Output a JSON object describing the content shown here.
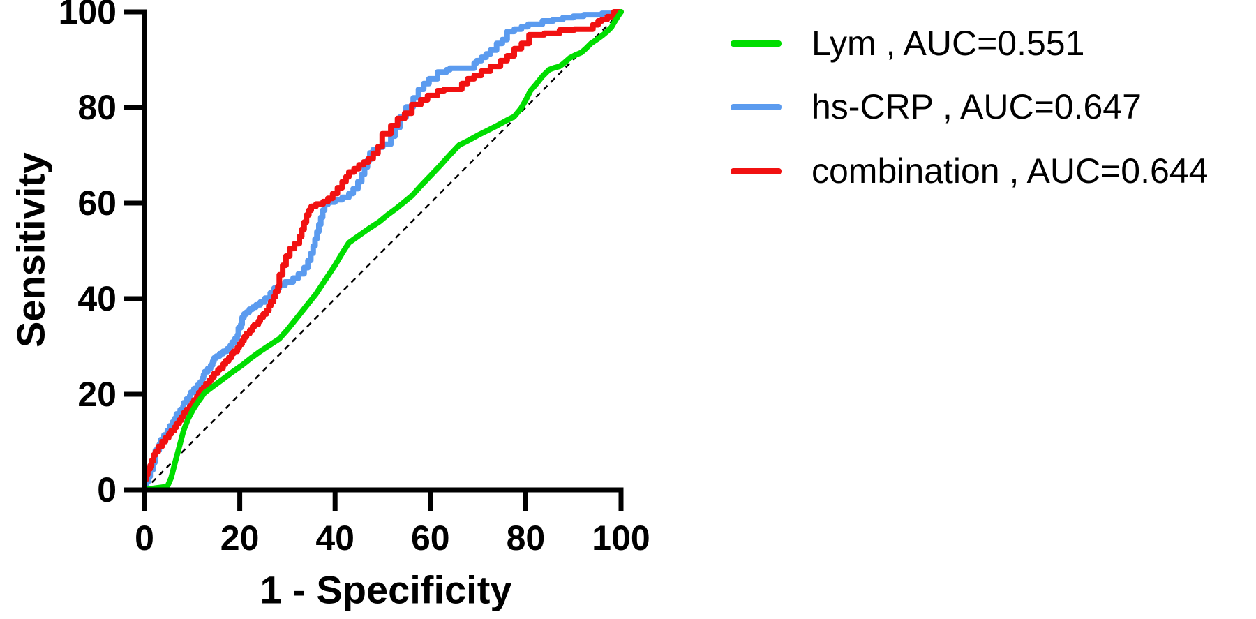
{
  "figure": {
    "description": "ROC curve comparison plot",
    "background_color": "#ffffff",
    "axis_color": "#000000"
  },
  "chart_data": {
    "type": "line",
    "subtype": "roc",
    "title": "",
    "xlabel": "1 - Specificity",
    "ylabel": "Sensitivity",
    "xlim": [
      0,
      100
    ],
    "ylim": [
      0,
      100
    ],
    "xticks": [
      "0",
      "20",
      "40",
      "60",
      "80",
      "100"
    ],
    "yticks": [
      "0",
      "20",
      "40",
      "60",
      "80",
      "100"
    ],
    "grid": false,
    "legend_position": "outside-right-top",
    "reference_line": {
      "name": "chance-diagonal",
      "style": "dashed",
      "color": "#000000",
      "points": [
        [
          0,
          0
        ],
        [
          100,
          100
        ]
      ]
    },
    "series": [
      {
        "name": "Lym",
        "legend_label": "Lym , AUC=0.551",
        "auc": "0.551",
        "color": "#00dd00",
        "stepped": false,
        "points": [
          [
            0,
            0
          ],
          [
            1,
            0.2
          ],
          [
            4.8,
            0.7
          ],
          [
            5.6,
            2.5
          ],
          [
            6.5,
            6
          ],
          [
            7.3,
            9
          ],
          [
            8.2,
            12.4
          ],
          [
            9.2,
            14.9
          ],
          [
            10.2,
            16.8
          ],
          [
            11.1,
            18.2
          ],
          [
            11.9,
            19.3
          ],
          [
            12.6,
            20.3
          ],
          [
            14.6,
            21.8
          ],
          [
            16.5,
            23.2
          ],
          [
            18.5,
            24.7
          ],
          [
            20.5,
            26.1
          ],
          [
            22.4,
            27.6
          ],
          [
            24.3,
            29
          ],
          [
            26.3,
            30.3
          ],
          [
            28.3,
            31.6
          ],
          [
            30,
            33.5
          ],
          [
            32,
            36
          ],
          [
            34,
            38.5
          ],
          [
            36,
            41
          ],
          [
            38,
            44
          ],
          [
            40,
            47
          ],
          [
            41.5,
            49.5
          ],
          [
            42.9,
            51.7
          ],
          [
            45,
            53.2
          ],
          [
            47,
            54.6
          ],
          [
            49.3,
            56.1
          ],
          [
            51,
            57.5
          ],
          [
            53,
            59
          ],
          [
            54.5,
            60.2
          ],
          [
            56.2,
            61.6
          ],
          [
            58,
            63.6
          ],
          [
            60,
            65.7
          ],
          [
            62,
            67.8
          ],
          [
            64,
            70
          ],
          [
            66,
            72.1
          ],
          [
            68,
            73.1
          ],
          [
            70,
            74.2
          ],
          [
            72,
            75.2
          ],
          [
            74,
            76.2
          ],
          [
            76,
            77.3
          ],
          [
            77.6,
            78.1
          ],
          [
            79,
            79.8
          ],
          [
            80,
            81.5
          ],
          [
            81,
            83.5
          ],
          [
            82.3,
            85
          ],
          [
            83.5,
            86.5
          ],
          [
            84.9,
            87.9
          ],
          [
            86,
            88.3
          ],
          [
            87.1,
            88.6
          ],
          [
            87.8,
            89.1
          ],
          [
            89.3,
            90.4
          ],
          [
            90.5,
            91
          ],
          [
            91.7,
            91.5
          ],
          [
            92.7,
            92.4
          ],
          [
            93.7,
            93.4
          ],
          [
            94.9,
            94.2
          ],
          [
            96,
            95
          ],
          [
            97.1,
            95.9
          ],
          [
            98,
            96.8
          ],
          [
            98.5,
            97.7
          ],
          [
            99.2,
            98.8
          ],
          [
            100,
            100
          ]
        ]
      },
      {
        "name": "hs-CRP",
        "legend_label": "hs-CRP , AUC=0.647",
        "auc": "0.647",
        "color": "#5b9bef",
        "stepped": true,
        "points": [
          [
            0,
            0
          ],
          [
            0.4,
            0.9
          ],
          [
            0.9,
            1.8
          ],
          [
            1.2,
            2.8
          ],
          [
            1.8,
            4.2
          ],
          [
            1.9,
            5.1
          ],
          [
            2.2,
            5.7
          ],
          [
            2.3,
            7.2
          ],
          [
            3.1,
            8.3
          ],
          [
            3.4,
            9.5
          ],
          [
            4.1,
            10.5
          ],
          [
            4.8,
            11.5
          ],
          [
            5.3,
            12.4
          ],
          [
            5.9,
            13.4
          ],
          [
            6.3,
            14.2
          ],
          [
            6.7,
            14.9
          ],
          [
            7.5,
            15.9
          ],
          [
            8.1,
            16.8
          ],
          [
            8.2,
            17.5
          ],
          [
            8.8,
            18.2
          ],
          [
            9.5,
            19
          ],
          [
            9.7,
            19.7
          ],
          [
            10.4,
            20.4
          ],
          [
            11.1,
            21.2
          ],
          [
            11.7,
            21.9
          ],
          [
            12.2,
            22.6
          ],
          [
            12.4,
            23.4
          ],
          [
            12.6,
            24.1
          ],
          [
            13.3,
            24.7
          ],
          [
            13.9,
            25.4
          ],
          [
            14.3,
            26.1
          ],
          [
            14.6,
            26.9
          ],
          [
            15.1,
            27.6
          ],
          [
            15.8,
            28
          ],
          [
            16.5,
            28.5
          ],
          [
            17.3,
            29
          ],
          [
            18,
            29.5
          ],
          [
            18.4,
            30.2
          ],
          [
            19,
            30.9
          ],
          [
            19.5,
            31.7
          ],
          [
            19.7,
            32.4
          ],
          [
            20.2,
            33.9
          ],
          [
            20.5,
            34.6
          ],
          [
            20.9,
            36.1
          ],
          [
            21.4,
            36.8
          ],
          [
            22,
            37.2
          ],
          [
            22.7,
            37.8
          ],
          [
            23.4,
            38.2
          ],
          [
            24.3,
            38.7
          ],
          [
            25.3,
            39.3
          ],
          [
            26.4,
            40.1
          ],
          [
            27.2,
            41.2
          ],
          [
            28.3,
            42.2
          ],
          [
            29.5,
            42.8
          ],
          [
            31.2,
            43.5
          ],
          [
            32.3,
            44.3
          ],
          [
            33.5,
            45.2
          ],
          [
            34.3,
            46.5
          ],
          [
            34.9,
            48
          ],
          [
            35.4,
            49.5
          ],
          [
            35.8,
            51
          ],
          [
            36.2,
            52.5
          ],
          [
            36.6,
            54
          ],
          [
            37,
            55.5
          ],
          [
            37.4,
            57
          ],
          [
            37.8,
            58.5
          ],
          [
            38.5,
            59.7
          ],
          [
            40,
            60.2
          ],
          [
            41.5,
            60.7
          ],
          [
            42.9,
            61.2
          ],
          [
            43.8,
            62
          ],
          [
            44.8,
            63
          ],
          [
            45.6,
            64.5
          ],
          [
            46.2,
            66
          ],
          [
            46.8,
            67.5
          ],
          [
            47.3,
            69
          ],
          [
            48,
            70.5
          ],
          [
            49,
            71.2
          ],
          [
            50,
            71.7
          ],
          [
            51.7,
            72.3
          ],
          [
            52.6,
            74
          ],
          [
            53.6,
            75.8
          ],
          [
            54.9,
            78
          ],
          [
            56.4,
            80.1
          ],
          [
            57.5,
            82
          ],
          [
            58.6,
            83.8
          ],
          [
            59.7,
            85
          ],
          [
            61.5,
            86
          ],
          [
            63.4,
            87.4
          ],
          [
            64.1,
            87.9
          ],
          [
            69.2,
            88.2
          ],
          [
            69.7,
            89.3
          ],
          [
            70.7,
            89.8
          ],
          [
            71.7,
            90.5
          ],
          [
            72.6,
            91.2
          ],
          [
            73.9,
            92
          ],
          [
            75.1,
            93.4
          ],
          [
            76.1,
            94.2
          ],
          [
            77.6,
            95.9
          ],
          [
            79.1,
            96.4
          ],
          [
            80.5,
            96.9
          ],
          [
            83.5,
            97.4
          ],
          [
            85.8,
            98.1
          ],
          [
            87.8,
            98.4
          ],
          [
            90,
            98.8
          ],
          [
            92.2,
            99.1
          ],
          [
            96,
            99.4
          ],
          [
            99,
            99.7
          ],
          [
            100,
            100
          ]
        ]
      },
      {
        "name": "combination",
        "legend_label": "combination , AUC=0.644",
        "auc": "0.644",
        "color": "#f11111",
        "stepped": true,
        "points": [
          [
            0,
            0
          ],
          [
            0.4,
            2.2
          ],
          [
            0.7,
            3.2
          ],
          [
            1.2,
            4.4
          ],
          [
            1.5,
            5.1
          ],
          [
            1.9,
            6.1
          ],
          [
            2.3,
            7.3
          ],
          [
            2.9,
            8
          ],
          [
            3.7,
            9.1
          ],
          [
            4.4,
            10.1
          ],
          [
            5.1,
            10.9
          ],
          [
            5.6,
            11.7
          ],
          [
            6.3,
            12.4
          ],
          [
            6.7,
            13.1
          ],
          [
            7.3,
            13.9
          ],
          [
            7.8,
            14.6
          ],
          [
            8.2,
            15.3
          ],
          [
            8.8,
            16.1
          ],
          [
            9.5,
            16.8
          ],
          [
            10,
            17.5
          ],
          [
            10.4,
            18.2
          ],
          [
            11,
            18.8
          ],
          [
            11.4,
            19.6
          ],
          [
            11.9,
            20.3
          ],
          [
            12.4,
            21
          ],
          [
            12.9,
            21.5
          ],
          [
            13.6,
            22.2
          ],
          [
            14.1,
            22.9
          ],
          [
            14.6,
            23.6
          ],
          [
            15.4,
            24.4
          ],
          [
            15.8,
            25.1
          ],
          [
            16.5,
            25.5
          ],
          [
            17,
            26.3
          ],
          [
            17.7,
            27
          ],
          [
            18.3,
            27.7
          ],
          [
            18.7,
            28.5
          ],
          [
            19.5,
            29
          ],
          [
            19.9,
            29.8
          ],
          [
            20.5,
            30.5
          ],
          [
            20.9,
            31.2
          ],
          [
            21.4,
            32
          ],
          [
            22.1,
            32.7
          ],
          [
            22.7,
            33.4
          ],
          [
            23.1,
            34.2
          ],
          [
            23.9,
            34.6
          ],
          [
            24.3,
            35.3
          ],
          [
            24.9,
            36.1
          ],
          [
            25.6,
            36.8
          ],
          [
            26.1,
            37.5
          ],
          [
            26.5,
            38.5
          ],
          [
            27.1,
            39.4
          ],
          [
            27.5,
            40.4
          ],
          [
            28,
            41.5
          ],
          [
            28.3,
            42.6
          ],
          [
            29,
            45
          ],
          [
            29.7,
            47
          ],
          [
            30.5,
            48.9
          ],
          [
            31.5,
            50.5
          ],
          [
            32.5,
            51.5
          ],
          [
            33,
            53
          ],
          [
            33.5,
            54.5
          ],
          [
            34,
            56
          ],
          [
            34.5,
            57.5
          ],
          [
            35,
            58.5
          ],
          [
            36,
            59.3
          ],
          [
            37.5,
            59.8
          ],
          [
            38.5,
            60.3
          ],
          [
            39.5,
            61
          ],
          [
            40.5,
            62
          ],
          [
            41.5,
            63.2
          ],
          [
            42.3,
            64.5
          ],
          [
            42.9,
            65.5
          ],
          [
            44,
            66.5
          ],
          [
            45,
            67.2
          ],
          [
            46,
            68
          ],
          [
            47,
            68.6
          ],
          [
            48,
            69.3
          ],
          [
            49,
            70.4
          ],
          [
            49.9,
            71.8
          ],
          [
            51.7,
            74.5
          ],
          [
            53.1,
            76.2
          ],
          [
            54.6,
            77.7
          ],
          [
            56.1,
            78.8
          ],
          [
            58,
            80.6
          ],
          [
            59.4,
            81.6
          ],
          [
            61.5,
            82.5
          ],
          [
            62.9,
            83.5
          ],
          [
            66.6,
            83.8
          ],
          [
            67.8,
            85
          ],
          [
            69.2,
            86
          ],
          [
            70.7,
            86.7
          ],
          [
            72.6,
            87.6
          ],
          [
            74.7,
            88.6
          ],
          [
            76.1,
            89.8
          ],
          [
            77.6,
            90.8
          ],
          [
            79.1,
            92.3
          ],
          [
            80.7,
            93.4
          ],
          [
            83.9,
            95.2
          ],
          [
            87.1,
            95.5
          ],
          [
            90.2,
            96.2
          ],
          [
            94.1,
            96.4
          ],
          [
            95.2,
            97.3
          ],
          [
            96,
            98.1
          ],
          [
            97.1,
            98.4
          ],
          [
            98.5,
            99
          ],
          [
            100,
            100
          ]
        ]
      }
    ]
  }
}
